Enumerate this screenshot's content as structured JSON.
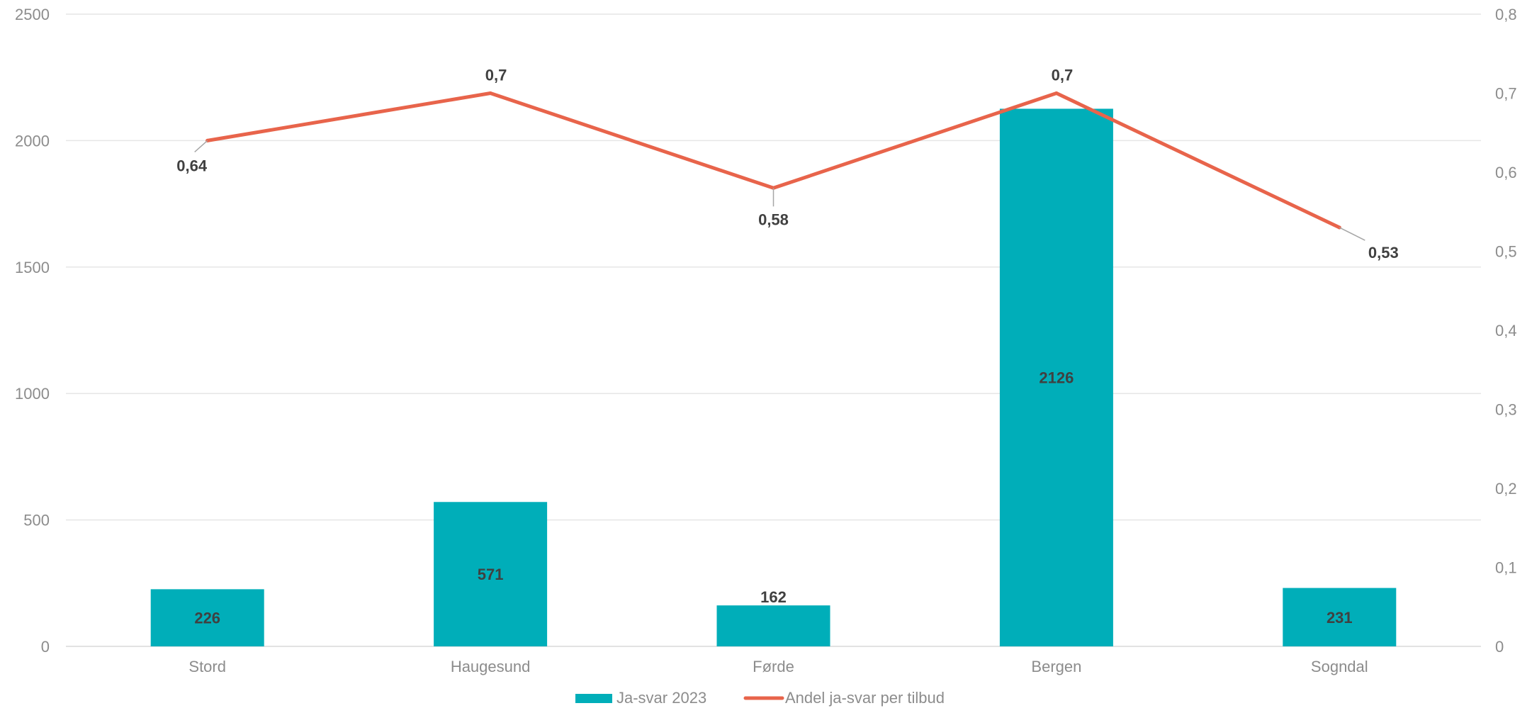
{
  "chart_data": {
    "type": "bar",
    "categories": [
      "Stord",
      "Haugesund",
      "Førde",
      "Bergen",
      "Sogndal"
    ],
    "series": [
      {
        "name": "Ja-svar 2023",
        "type": "bar",
        "axis": "left",
        "values": [
          226,
          571,
          162,
          2126,
          231
        ],
        "labels": [
          "226",
          "571",
          "162",
          "2126",
          "231"
        ],
        "color": "#00AEB9"
      },
      {
        "name": "Andel ja-svar per tilbud",
        "type": "line",
        "axis": "right",
        "values": [
          0.64,
          0.7,
          0.58,
          0.7,
          0.53
        ],
        "labels": [
          "0,64",
          "0,7",
          "0,58",
          "0,7",
          "0,53"
        ],
        "color": "#E8644B"
      }
    ],
    "ylim_left": [
      0,
      2500
    ],
    "yticks_left": [
      "0",
      "500",
      "1000",
      "1500",
      "2000",
      "2500"
    ],
    "ylim_right": [
      0,
      0.8
    ],
    "yticks_right": [
      "0",
      "0,1",
      "0,2",
      "0,3",
      "0,4",
      "0,5",
      "0,6",
      "0,7",
      "0,8"
    ],
    "grid": true,
    "legend": "bottom",
    "title": "",
    "xlabel": "",
    "ylabel": ""
  }
}
